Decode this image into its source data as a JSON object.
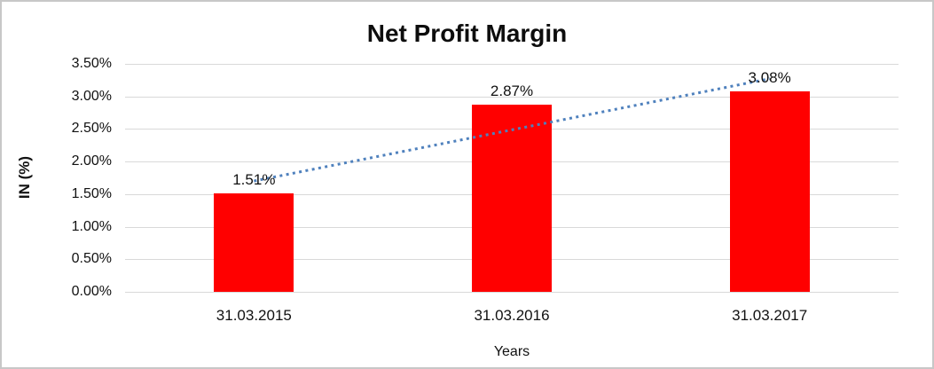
{
  "chart_data": {
    "type": "bar",
    "title": "Net Profit Margin",
    "xlabel": "Years",
    "ylabel": "IN (%)",
    "categories": [
      "31.03.2015",
      "31.03.2016",
      "31.03.2017"
    ],
    "values": [
      1.51,
      2.87,
      3.08
    ],
    "data_labels": [
      "1.51%",
      "2.87%",
      "3.08%"
    ],
    "y_ticks_top_to_bottom": [
      "3.50%",
      "3.00%",
      "2.50%",
      "2.00%",
      "1.50%",
      "1.00%",
      "0.50%",
      "0.00%"
    ],
    "ylim": [
      0,
      3.5
    ],
    "y_tick_step": 0.5,
    "grid": true,
    "legend": "none",
    "bar_color": "#ff0000",
    "gridline_color": "#d9d9d9",
    "trendline": {
      "type": "linear",
      "style": "dotted",
      "color": "#4f81bd"
    }
  }
}
